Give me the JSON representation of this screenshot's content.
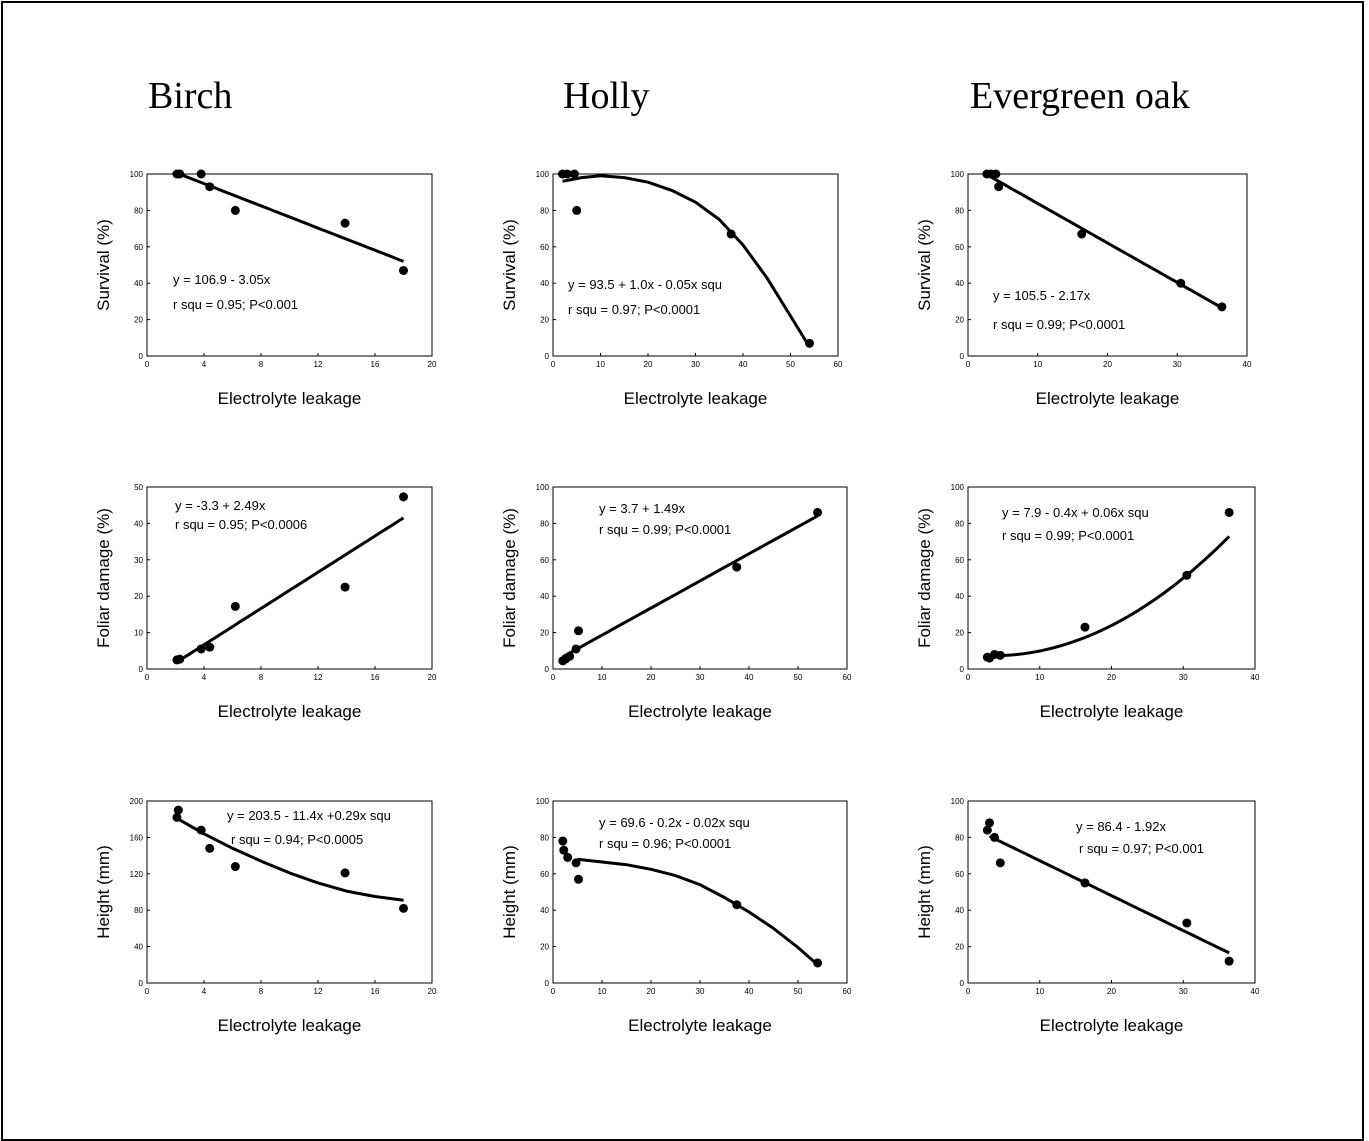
{
  "columns": [
    {
      "title": "Birch"
    },
    {
      "title": "Holly"
    },
    {
      "title": "Evergreen oak"
    }
  ],
  "chart_data": [
    {
      "type": "scatter",
      "species": "Birch",
      "xlabel": "Electrolyte leakage",
      "ylabel": "Survival (%)",
      "xlim": [
        0,
        20
      ],
      "ylim": [
        0,
        100
      ],
      "xticks": [
        0,
        4,
        8,
        12,
        16,
        20
      ],
      "yticks": [
        0,
        20,
        40,
        60,
        80,
        100
      ],
      "x": [
        2.1,
        2.3,
        3.8,
        4.4,
        6.2,
        13.9,
        18.0
      ],
      "y": [
        100,
        100,
        100,
        93,
        80,
        73,
        47
      ],
      "fit": {
        "kind": "poly",
        "coef": [
          106.9,
          -3.05
        ],
        "range": [
          2.1,
          18
        ]
      },
      "annotations": [
        "y = 106.9 - 3.05x",
        "r squ = 0.95; P<0.001"
      ]
    },
    {
      "type": "scatter",
      "species": "Holly",
      "xlabel": "Electrolyte leakage",
      "ylabel": "Survival (%)",
      "xlim": [
        0,
        60
      ],
      "ylim": [
        0,
        100
      ],
      "xticks": [
        0,
        10,
        20,
        30,
        40,
        50,
        60
      ],
      "yticks": [
        0,
        20,
        40,
        60,
        80,
        100
      ],
      "x": [
        2.0,
        3.0,
        4.5,
        5.0,
        37.5,
        54.0
      ],
      "y": [
        100,
        100,
        100,
        80,
        67,
        7
      ],
      "fit": {
        "kind": "points",
        "pts": [
          [
            2,
            96
          ],
          [
            6,
            98
          ],
          [
            10,
            99
          ],
          [
            15,
            98
          ],
          [
            20,
            95.5
          ],
          [
            25,
            91
          ],
          [
            30,
            84.5
          ],
          [
            35,
            75
          ],
          [
            40,
            61
          ],
          [
            45,
            43
          ],
          [
            50,
            22
          ],
          [
            54,
            5
          ]
        ]
      },
      "annotations": [
        "y = 93.5 + 1.0x - 0.05x squ",
        "r squ = 0.97; P<0.0001"
      ]
    },
    {
      "type": "scatter",
      "species": "Evergreen oak",
      "xlabel": "Electrolyte leakage",
      "ylabel": "Survival (%)",
      "xlim": [
        0,
        40
      ],
      "ylim": [
        0,
        100
      ],
      "xticks": [
        0,
        10,
        20,
        30,
        40
      ],
      "yticks": [
        0,
        20,
        40,
        60,
        80,
        100
      ],
      "x": [
        2.7,
        3.3,
        4.0,
        4.4,
        16.3,
        30.5,
        36.4
      ],
      "y": [
        100,
        100,
        100,
        93,
        67,
        40,
        27
      ],
      "fit": {
        "kind": "poly",
        "coef": [
          105.5,
          -2.17
        ],
        "range": [
          2.7,
          36.4
        ]
      },
      "annotations": [
        "y = 105.5 - 2.17x",
        "r squ = 0.99; P<0.0001"
      ]
    },
    {
      "type": "scatter",
      "species": "Birch",
      "xlabel": "Electrolyte leakage",
      "ylabel": "Foliar damage (%)",
      "xlim": [
        0,
        20
      ],
      "ylim": [
        0,
        50
      ],
      "xticks": [
        0,
        4,
        8,
        12,
        16,
        20
      ],
      "yticks": [
        0,
        10,
        20,
        30,
        40,
        50
      ],
      "x": [
        2.1,
        2.3,
        3.8,
        4.4,
        6.2,
        13.9,
        18.0
      ],
      "y": [
        2.5,
        2.7,
        5.5,
        6.0,
        17.2,
        22.5,
        47.3
      ],
      "fit": {
        "kind": "poly",
        "coef": [
          -3.3,
          2.49
        ],
        "range": [
          2.1,
          18
        ]
      },
      "annotations": [
        "y = -3.3 + 2.49x",
        "r squ = 0.95; P<0.0006"
      ]
    },
    {
      "type": "scatter",
      "species": "Holly",
      "xlabel": "Electrolyte leakage",
      "ylabel": "Foliar damage (%)",
      "xlim": [
        0,
        60
      ],
      "ylim": [
        0,
        100
      ],
      "xticks": [
        0,
        10,
        20,
        30,
        40,
        50,
        60
      ],
      "yticks": [
        0,
        20,
        40,
        60,
        80,
        100
      ],
      "x": [
        2.0,
        2.6,
        3.4,
        4.7,
        5.2,
        37.5,
        54.0
      ],
      "y": [
        4.5,
        5.5,
        7,
        11,
        21,
        56,
        86
      ],
      "fit": {
        "kind": "poly",
        "coef": [
          3.7,
          1.49
        ],
        "range": [
          2,
          54
        ]
      },
      "annotations": [
        "y = 3.7 + 1.49x",
        "r squ = 0.99; P<0.0001"
      ]
    },
    {
      "type": "scatter",
      "species": "Evergreen oak",
      "xlabel": "Electrolyte leakage",
      "ylabel": "Foliar damage (%)",
      "xlim": [
        0,
        40
      ],
      "ylim": [
        0,
        100
      ],
      "xticks": [
        0,
        10,
        20,
        30,
        40
      ],
      "yticks": [
        0,
        20,
        40,
        60,
        80,
        100
      ],
      "x": [
        2.7,
        3.0,
        3.7,
        4.5,
        16.3,
        30.5,
        36.4
      ],
      "y": [
        6.5,
        6,
        8,
        7.5,
        23,
        51.5,
        86
      ],
      "fit": {
        "kind": "poly",
        "coef": [
          7.9,
          -0.4,
          0.06
        ],
        "range": [
          2.7,
          36.4
        ]
      },
      "annotations": [
        "y = 7.9 - 0.4x + 0.06x squ",
        "r squ = 0.99; P<0.0001"
      ]
    },
    {
      "type": "scatter",
      "species": "Birch",
      "xlabel": "Electrolyte leakage",
      "ylabel": "Height (mm)",
      "xlim": [
        0,
        20
      ],
      "ylim": [
        0,
        200
      ],
      "xticks": [
        0,
        4,
        8,
        12,
        16,
        20
      ],
      "yticks": [
        0,
        40,
        80,
        120,
        160,
        200
      ],
      "x": [
        2.1,
        2.2,
        3.8,
        4.4,
        6.2,
        13.9,
        18.0
      ],
      "y": [
        182,
        190,
        168,
        148,
        128,
        121,
        82
      ],
      "fit": {
        "kind": "points",
        "pts": [
          [
            2.1,
            181
          ],
          [
            4,
            164
          ],
          [
            6,
            148
          ],
          [
            8,
            134
          ],
          [
            10,
            121
          ],
          [
            12,
            110
          ],
          [
            14,
            101
          ],
          [
            16,
            95
          ],
          [
            18,
            91
          ]
        ]
      },
      "annotations": [
        "y = 203.5 - 11.4x +0.29x squ",
        "r squ = 0.94; P<0.0005"
      ]
    },
    {
      "type": "scatter",
      "species": "Holly",
      "xlabel": "Electrolyte leakage",
      "ylabel": "Height (mm)",
      "xlim": [
        0,
        60
      ],
      "ylim": [
        0,
        100
      ],
      "xticks": [
        0,
        10,
        20,
        30,
        40,
        50,
        60
      ],
      "yticks": [
        0,
        20,
        40,
        60,
        80,
        100
      ],
      "x": [
        2.0,
        2.2,
        3.0,
        4.7,
        5.2,
        37.5,
        54.0
      ],
      "y": [
        78,
        73,
        69,
        66,
        57,
        43,
        11
      ],
      "fit": {
        "kind": "points",
        "pts": [
          [
            5,
            68
          ],
          [
            10,
            66.5
          ],
          [
            15,
            65
          ],
          [
            20,
            62.5
          ],
          [
            25,
            59
          ],
          [
            30,
            54
          ],
          [
            35,
            47
          ],
          [
            40,
            39
          ],
          [
            45,
            30
          ],
          [
            50,
            19.5
          ],
          [
            54,
            10
          ]
        ]
      },
      "annotations": [
        "y = 69.6 - 0.2x - 0.02x squ",
        "r squ = 0.96; P<0.0001"
      ]
    },
    {
      "type": "scatter",
      "species": "Evergreen oak",
      "xlabel": "Electrolyte leakage",
      "ylabel": "Height (mm)",
      "xlim": [
        0,
        40
      ],
      "ylim": [
        0,
        100
      ],
      "xticks": [
        0,
        10,
        20,
        30,
        40
      ],
      "yticks": [
        0,
        20,
        40,
        60,
        80,
        100
      ],
      "x": [
        2.7,
        3.0,
        3.7,
        4.5,
        16.3,
        30.5,
        36.4
      ],
      "y": [
        84,
        88,
        80,
        66,
        55,
        33,
        12
      ],
      "fit": {
        "kind": "poly",
        "coef": [
          86.4,
          -1.92
        ],
        "range": [
          3,
          36.4
        ]
      },
      "annotations": [
        "y = 86.4 - 1.92x",
        "r squ = 0.97; P<0.001"
      ]
    }
  ]
}
